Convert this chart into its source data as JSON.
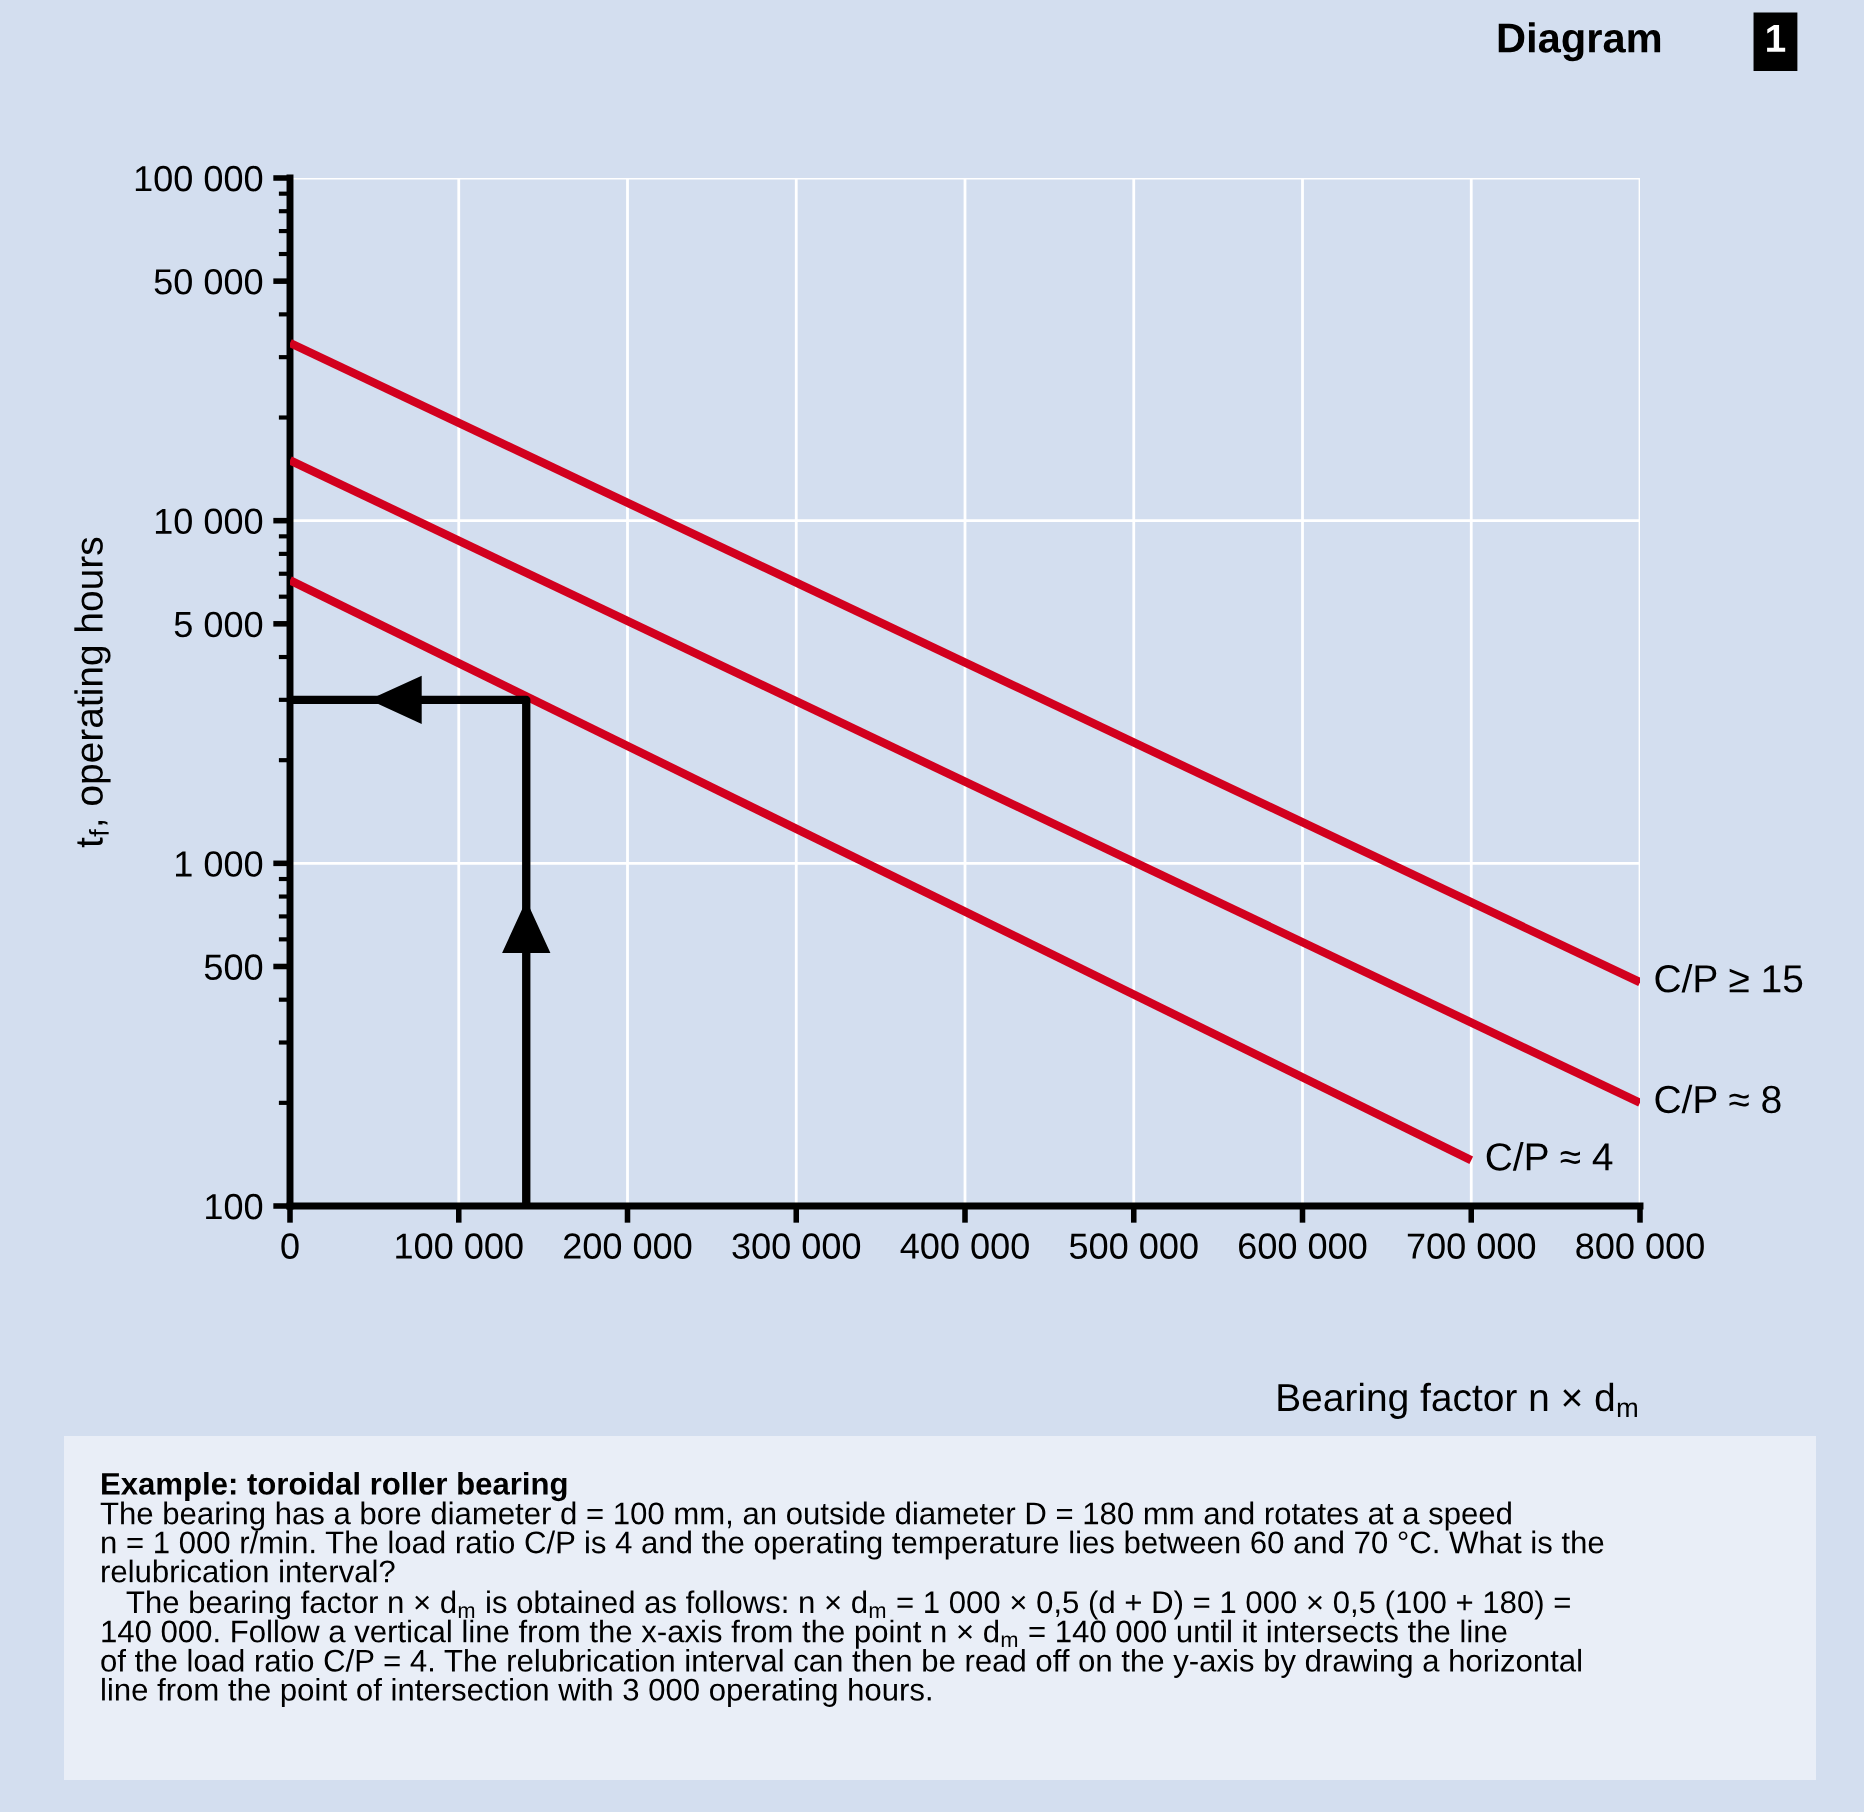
{
  "chart_data": {
    "type": "line",
    "title": "Diagram",
    "subtitle": "1",
    "xlabel": "Bearing factor n × d$_{m}$",
    "ylabel": "t$_{f}$, operating hours",
    "log": "y",
    "grid": true,
    "line_style": "solid",
    "marker": "none",
    "xlim": [
      0,
      800000
    ],
    "xticks": [
      0,
      {
        "value": 100000,
        "label": "100 000"
      },
      {
        "value": 200000,
        "label": "200 000"
      },
      {
        "value": 300000,
        "label": "300 000"
      },
      {
        "value": 400000,
        "label": "400 000"
      },
      {
        "value": 500000,
        "label": "500 000"
      },
      {
        "value": 600000,
        "label": "600 000"
      },
      {
        "value": 700000,
        "label": "700 000"
      },
      {
        "value": 800000,
        "label": "800 000"
      }
    ],
    "ylim": [
      100,
      100000
    ],
    "yticks": [
      100,
      500,
      {
        "value": 1000,
        "label": "1 000"
      },
      {
        "value": 5000,
        "label": "5 000"
      },
      {
        "value": 10000,
        "label": "10 000"
      },
      {
        "value": 50000,
        "label": "50 000"
      },
      {
        "value": 100000,
        "label": "100 000"
      }
    ],
    "series": [
      {
        "name": "C/P ≥ 15",
        "color": "#d2001e",
        "x": [
          0,
          800000
        ],
        "values": [
          33000,
          450
        ]
      },
      {
        "name": "C/P ≈ 8",
        "color": "#d2001e",
        "x": [
          0,
          800000
        ],
        "values": [
          15000,
          200
        ]
      },
      {
        "name": "C/P ≈ 4",
        "color": "#d2001e",
        "x": [
          0,
          700000
        ],
        "values": [
          6700,
          136
        ]
      },
      {
        "color": "#000000",
        "x": [
          140000,
          140000,
          0
        ],
        "values": [
          100,
          3000,
          3000
        ]
      }
    ],
    "annotations": [
      "Example: toroidal roller bearing",
      "The bearing has a bore diameter d = 100 mm, an outside diameter D = 180 mm and rotates at a speed\nn = 1 000 r/min. The load ratio C/P is 4 and the operating temperature lies between 60 and 70 °C. What is the\nrelubrication interval?",
      "   The bearing factor n × d$_{m}$ is obtained as follows: n × d$_{m}$ = 1 000 × 0,5 (d + D) = 1 000 × 0,5 (100 + 180) =\n140 000. Follow a vertical line from the x-axis from the point n × d$_{m}$ = 140 000 until it intersects the line\nof the load ratio C/P = 4. The relubrication interval can then be read off on the y-axis by drawing a horizontal\nline from the point of intersection with 3 000 operating hours."
    ]
  }
}
